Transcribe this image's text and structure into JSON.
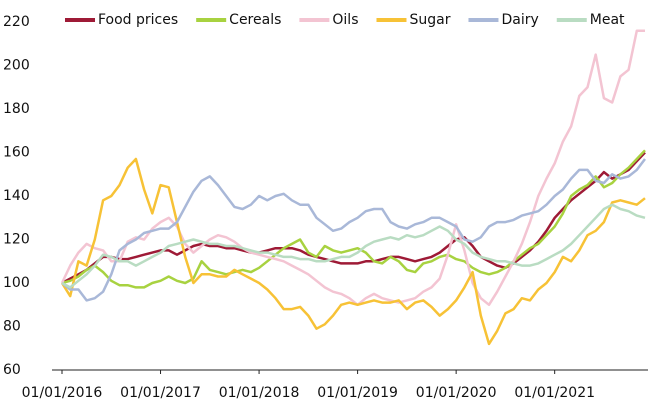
{
  "chart_data": {
    "type": "line",
    "x": [
      "01/01/2016",
      "01/02/2016",
      "01/03/2016",
      "01/04/2016",
      "01/05/2016",
      "01/06/2016",
      "01/07/2016",
      "01/08/2016",
      "01/09/2016",
      "01/10/2016",
      "01/11/2016",
      "01/12/2016",
      "01/01/2017",
      "01/02/2017",
      "01/03/2017",
      "01/04/2017",
      "01/05/2017",
      "01/06/2017",
      "01/07/2017",
      "01/08/2017",
      "01/09/2017",
      "01/10/2017",
      "01/11/2017",
      "01/12/2017",
      "01/01/2018",
      "01/02/2018",
      "01/03/2018",
      "01/04/2018",
      "01/05/2018",
      "01/06/2018",
      "01/07/2018",
      "01/08/2018",
      "01/09/2018",
      "01/10/2018",
      "01/11/2018",
      "01/12/2018",
      "01/01/2019",
      "01/02/2019",
      "01/03/2019",
      "01/04/2019",
      "01/05/2019",
      "01/06/2019",
      "01/07/2019",
      "01/08/2019",
      "01/09/2019",
      "01/10/2019",
      "01/11/2019",
      "01/12/2019",
      "01/01/2020",
      "01/02/2020",
      "01/03/2020",
      "01/04/2020",
      "01/05/2020",
      "01/06/2020",
      "01/07/2020",
      "01/08/2020",
      "01/09/2020",
      "01/10/2020",
      "01/11/2020",
      "01/12/2020",
      "01/01/2021",
      "01/02/2021",
      "01/03/2021",
      "01/04/2021",
      "01/05/2021",
      "01/06/2021",
      "01/07/2021",
      "01/08/2021",
      "01/09/2021",
      "01/10/2021",
      "01/11/2021",
      "01/12/2021"
    ],
    "series": [
      {
        "name": "Food prices",
        "color": "#9e1a36",
        "values": [
          100,
          102,
          104,
          106,
          109,
          112,
          112,
          111,
          111,
          112,
          113,
          114,
          115,
          115,
          113,
          115,
          117,
          118,
          117,
          117,
          116,
          116,
          115,
          114,
          114,
          115,
          116,
          116,
          116,
          115,
          113,
          112,
          111,
          110,
          109,
          109,
          109,
          110,
          110,
          111,
          112,
          112,
          111,
          110,
          111,
          112,
          114,
          117,
          120,
          121,
          117,
          112,
          110,
          108,
          107,
          109,
          112,
          115,
          119,
          124,
          130,
          134,
          138,
          141,
          144,
          147,
          151,
          148,
          150,
          152,
          156,
          160
        ]
      },
      {
        "name": "Cereals",
        "color": "#a8d240",
        "values": [
          100,
          101,
          103,
          106,
          108,
          105,
          101,
          99,
          99,
          98,
          98,
          100,
          101,
          103,
          101,
          100,
          102,
          110,
          106,
          105,
          104,
          105,
          106,
          105,
          107,
          110,
          113,
          116,
          118,
          120,
          114,
          112,
          117,
          115,
          114,
          115,
          116,
          114,
          110,
          109,
          112,
          110,
          106,
          105,
          109,
          110,
          112,
          113,
          111,
          110,
          107,
          105,
          104,
          105,
          107,
          110,
          113,
          116,
          118,
          122,
          126,
          132,
          140,
          143,
          145,
          149,
          144,
          146,
          150,
          153,
          157,
          161
        ]
      },
      {
        "name": "Oils",
        "color": "#f3c4d2",
        "values": [
          100,
          108,
          114,
          118,
          116,
          115,
          110,
          110,
          119,
          121,
          120,
          125,
          128,
          130,
          126,
          118,
          114,
          117,
          120,
          122,
          121,
          119,
          116,
          114,
          113,
          112,
          111,
          110,
          108,
          106,
          104,
          101,
          98,
          96,
          95,
          93,
          90,
          93,
          95,
          93,
          92,
          91,
          92,
          93,
          96,
          98,
          102,
          113,
          127,
          115,
          100,
          93,
          90,
          96,
          103,
          110,
          118,
          128,
          140,
          148,
          155,
          165,
          172,
          186,
          190,
          205,
          185,
          183,
          195,
          198,
          216,
          216
        ]
      },
      {
        "name": "Sugar",
        "color": "#f7c236",
        "values": [
          100,
          94,
          110,
          108,
          120,
          138,
          140,
          145,
          153,
          157,
          143,
          132,
          145,
          144,
          128,
          112,
          100,
          104,
          104,
          103,
          103,
          106,
          104,
          102,
          100,
          97,
          93,
          88,
          88,
          89,
          85,
          79,
          81,
          85,
          90,
          91,
          90,
          91,
          92,
          91,
          91,
          92,
          88,
          91,
          92,
          89,
          85,
          88,
          92,
          98,
          105,
          85,
          72,
          78,
          86,
          88,
          93,
          92,
          97,
          100,
          105,
          112,
          110,
          115,
          122,
          124,
          128,
          137,
          138,
          137,
          136,
          139
        ]
      },
      {
        "name": "Dairy",
        "color": "#a9b8d8",
        "values": [
          100,
          97,
          97,
          92,
          93,
          96,
          104,
          115,
          118,
          120,
          123,
          124,
          125,
          125,
          128,
          135,
          142,
          147,
          149,
          145,
          140,
          135,
          134,
          136,
          140,
          138,
          140,
          141,
          138,
          136,
          136,
          130,
          127,
          124,
          125,
          128,
          130,
          133,
          134,
          134,
          128,
          126,
          125,
          127,
          128,
          130,
          130,
          128,
          126,
          120,
          119,
          121,
          126,
          128,
          128,
          129,
          131,
          132,
          133,
          136,
          140,
          143,
          148,
          152,
          152,
          147,
          146,
          150,
          148,
          149,
          152,
          157
        ]
      },
      {
        "name": "Meat",
        "color": "#b9dcc2",
        "values": [
          100,
          98,
          101,
          104,
          108,
          113,
          112,
          110,
          110,
          108,
          110,
          112,
          114,
          117,
          118,
          119,
          120,
          119,
          118,
          118,
          117,
          117,
          116,
          115,
          114,
          114,
          113,
          112,
          112,
          111,
          111,
          110,
          110,
          111,
          112,
          112,
          114,
          117,
          119,
          120,
          121,
          120,
          122,
          121,
          122,
          124,
          126,
          124,
          120,
          118,
          114,
          112,
          111,
          110,
          110,
          109,
          108,
          108,
          109,
          111,
          113,
          115,
          118,
          122,
          126,
          130,
          134,
          136,
          134,
          133,
          131,
          130
        ]
      }
    ],
    "xlim": [
      "01/01/2016",
      "01/12/2021"
    ],
    "xticks": [
      "01/01/2016",
      "01/01/2017",
      "01/01/2018",
      "01/01/2019",
      "01/01/2020",
      "01/01/2021"
    ],
    "ylim": [
      60,
      220
    ],
    "yticks": [
      60,
      80,
      100,
      120,
      140,
      160,
      180,
      200,
      220
    ],
    "legend": "top",
    "grid": false
  }
}
